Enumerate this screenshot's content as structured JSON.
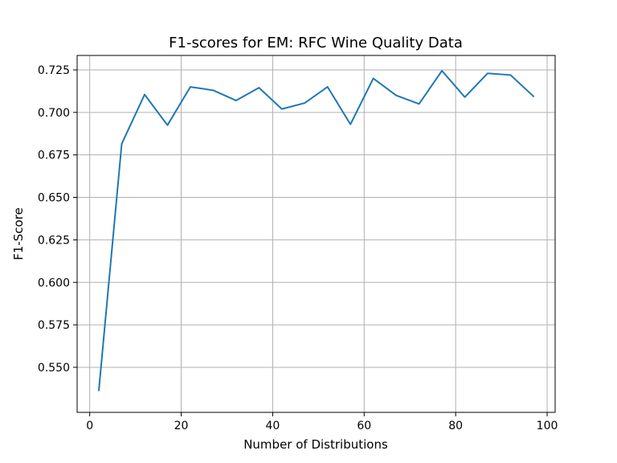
{
  "chart_data": {
    "type": "line",
    "title": "F1-scores for EM: RFC Wine Quality Data",
    "xlabel": "Number of Distributions",
    "ylabel": "F1-Score",
    "xlim": [
      -2.75,
      101.75
    ],
    "ylim": [
      0.5235,
      0.7335
    ],
    "xticks": [
      0,
      20,
      40,
      60,
      80,
      100
    ],
    "xtick_labels": [
      "0",
      "20",
      "40",
      "60",
      "80",
      "100"
    ],
    "yticks": [
      0.55,
      0.575,
      0.6,
      0.625,
      0.65,
      0.675,
      0.7,
      0.725
    ],
    "ytick_labels": [
      "0.550",
      "0.575",
      "0.600",
      "0.625",
      "0.650",
      "0.675",
      "0.700",
      "0.725"
    ],
    "grid": true,
    "series": [
      {
        "color": "#1f77b4",
        "x": [
          2,
          7,
          12,
          17,
          22,
          27,
          32,
          37,
          42,
          47,
          52,
          57,
          62,
          67,
          72,
          77,
          82,
          87,
          92,
          97
        ],
        "values": [
          0.5365,
          0.6815,
          0.7105,
          0.6925,
          0.715,
          0.713,
          0.707,
          0.7145,
          0.702,
          0.7055,
          0.715,
          0.693,
          0.72,
          0.71,
          0.705,
          0.7245,
          0.709,
          0.723,
          0.722,
          0.7095
        ]
      }
    ]
  }
}
